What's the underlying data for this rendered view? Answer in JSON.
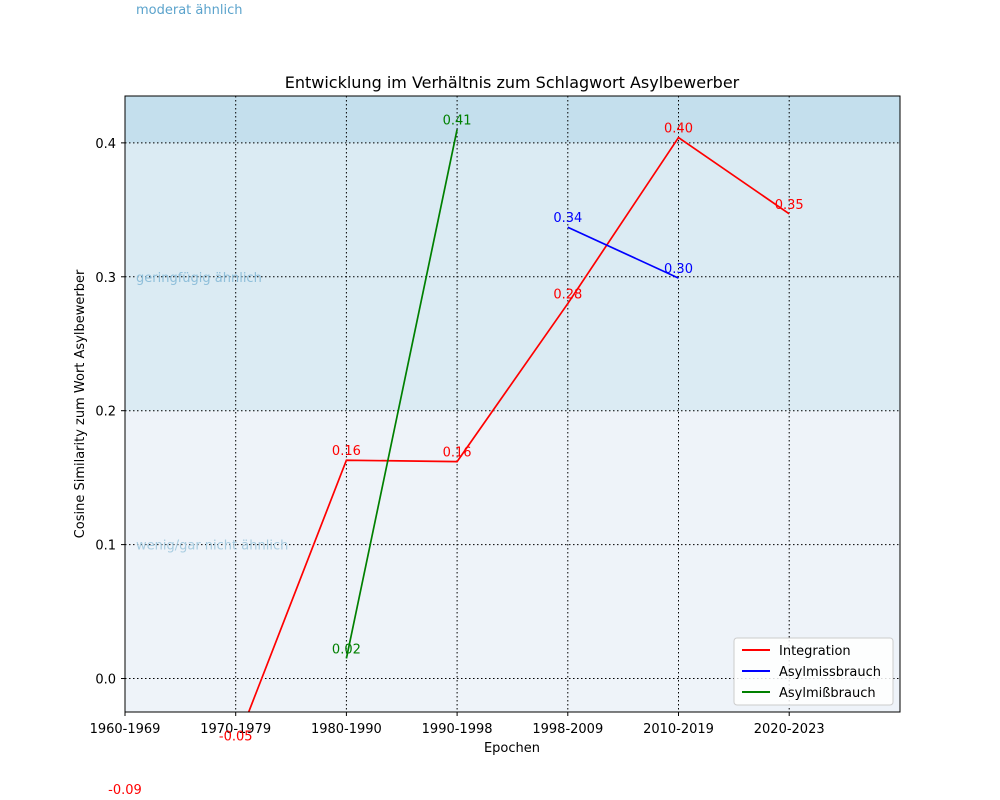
{
  "chart_data": {
    "type": "line",
    "title": "Entwicklung im Verhältnis zum Schlagwort Asylbewerber",
    "xlabel": "Epochen",
    "ylabel": "Cosine Similarity zum Wort Asylbewerber",
    "categories": [
      "1960-1969",
      "1970-1979",
      "1980-1990",
      "1990-1998",
      "1998-2009",
      "2010-2019",
      "2020-2023"
    ],
    "ylim": [
      -0.025,
      0.435
    ],
    "yticks": [
      "0.0",
      "0.1",
      "0.2",
      "0.3",
      "0.4"
    ],
    "grid": true,
    "legend_position": "bottom-right",
    "bands": [
      {
        "label": "wenig/gar nicht ähnlich",
        "from": -0.025,
        "to": 0.2,
        "color": "#eef3f9",
        "text_color": "#a8cce0",
        "label_y": 0.1
      },
      {
        "label": "geringfügig ähnlich",
        "from": 0.2,
        "to": 0.4,
        "color": "#dbebf3",
        "text_color": "#8fbfda",
        "label_y": 0.3
      },
      {
        "label": "moderat ähnlich",
        "from": 0.4,
        "to": 0.435,
        "color": "#c4dfed",
        "text_color": "#5ba3cc",
        "label_y": 0.5
      }
    ],
    "series": [
      {
        "name": "Integration",
        "color": "#ff0000",
        "x": [
          0,
          1,
          2,
          3,
          4,
          5,
          6
        ],
        "values": [
          -0.09,
          -0.05,
          0.163,
          0.162,
          0.28,
          0.404,
          0.347
        ],
        "labels": [
          "-0.09",
          "-0.05",
          "0.16",
          "0.16",
          "0.28",
          "0.40",
          "0.35"
        ]
      },
      {
        "name": "Asylmissbrauch",
        "color": "#0000ff",
        "x": [
          4,
          5
        ],
        "values": [
          0.337,
          0.299
        ],
        "labels": [
          "0.34",
          "0.30"
        ]
      },
      {
        "name": "Asylmißbrauch",
        "color": "#008000",
        "x": [
          2,
          3
        ],
        "values": [
          0.015,
          0.41
        ],
        "labels": [
          "0.02",
          "0.41"
        ]
      }
    ]
  }
}
